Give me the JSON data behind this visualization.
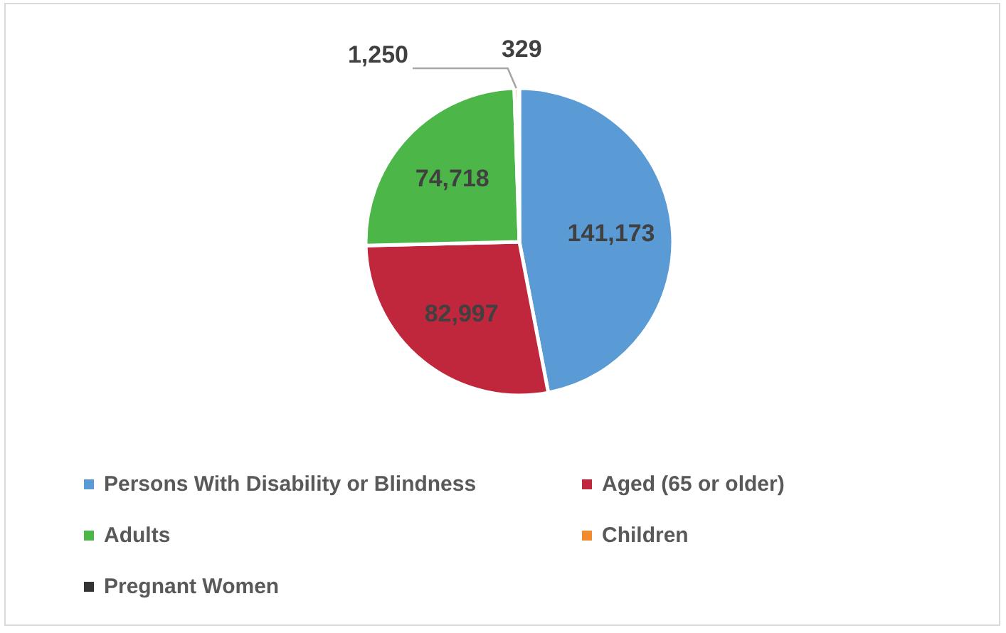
{
  "chart_data": {
    "type": "pie",
    "categories": [
      "Persons With Disability or Blindness",
      "Aged (65 or older)",
      "Adults",
      "Children",
      "Pregnant Women"
    ],
    "values": [
      141173,
      82997,
      74718,
      1250,
      329
    ],
    "colors": [
      "#5b9bd5",
      "#c0273d",
      "#4cb748",
      "#f28b30",
      "#333333"
    ],
    "value_labels": [
      "141,173",
      "82,997",
      "74,718",
      "1,250",
      "329"
    ],
    "legend": "bottom"
  }
}
